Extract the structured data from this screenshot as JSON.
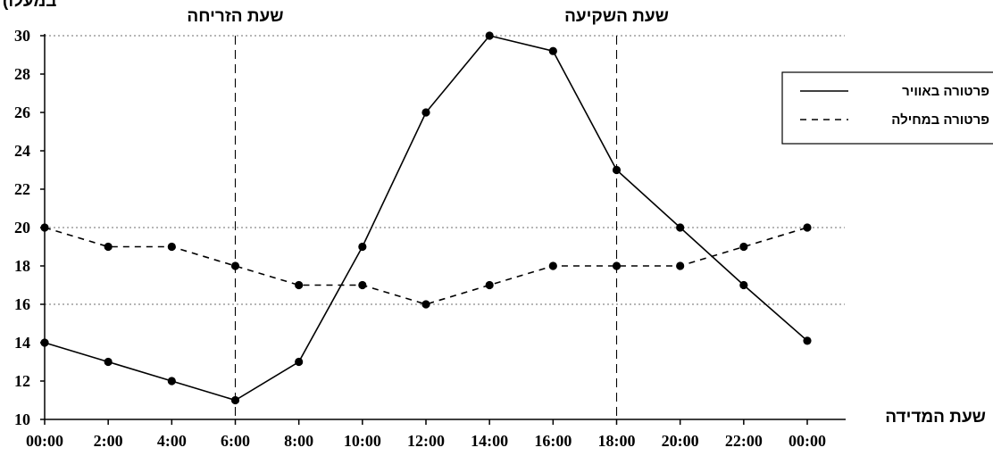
{
  "chart_data": {
    "type": "line",
    "title": "",
    "ylabel": "(במעלו",
    "xlabel": "שעת המדידה",
    "categories": [
      "00:00",
      "2:00",
      "4:00",
      "6:00",
      "8:00",
      "10:00",
      "12:00",
      "14:00",
      "16:00",
      "18:00",
      "20:00",
      "22:00",
      "00:00"
    ],
    "ylim": [
      10,
      30
    ],
    "yticks": [
      10,
      12,
      14,
      16,
      18,
      20,
      22,
      24,
      26,
      28,
      30
    ],
    "gridlines_y": [
      16,
      20,
      30
    ],
    "series": [
      {
        "name": "פרטורה באוויר",
        "style": "solid",
        "values": [
          14,
          13,
          12,
          11,
          13,
          19,
          26,
          30,
          29.2,
          23,
          20,
          17,
          14.1
        ]
      },
      {
        "name": "פרטורה במחילה",
        "style": "dashed",
        "values": [
          20,
          19,
          19,
          18,
          17,
          17,
          16,
          17,
          18,
          18,
          18,
          19,
          20
        ]
      }
    ],
    "annotations": [
      {
        "label": "שעת הזריחה",
        "at_category_index": 3
      },
      {
        "label": "שעת השקיעה",
        "at_category_index": 9
      }
    ],
    "legend_placement": "right",
    "grid": "partial-horizontal-dotted"
  }
}
